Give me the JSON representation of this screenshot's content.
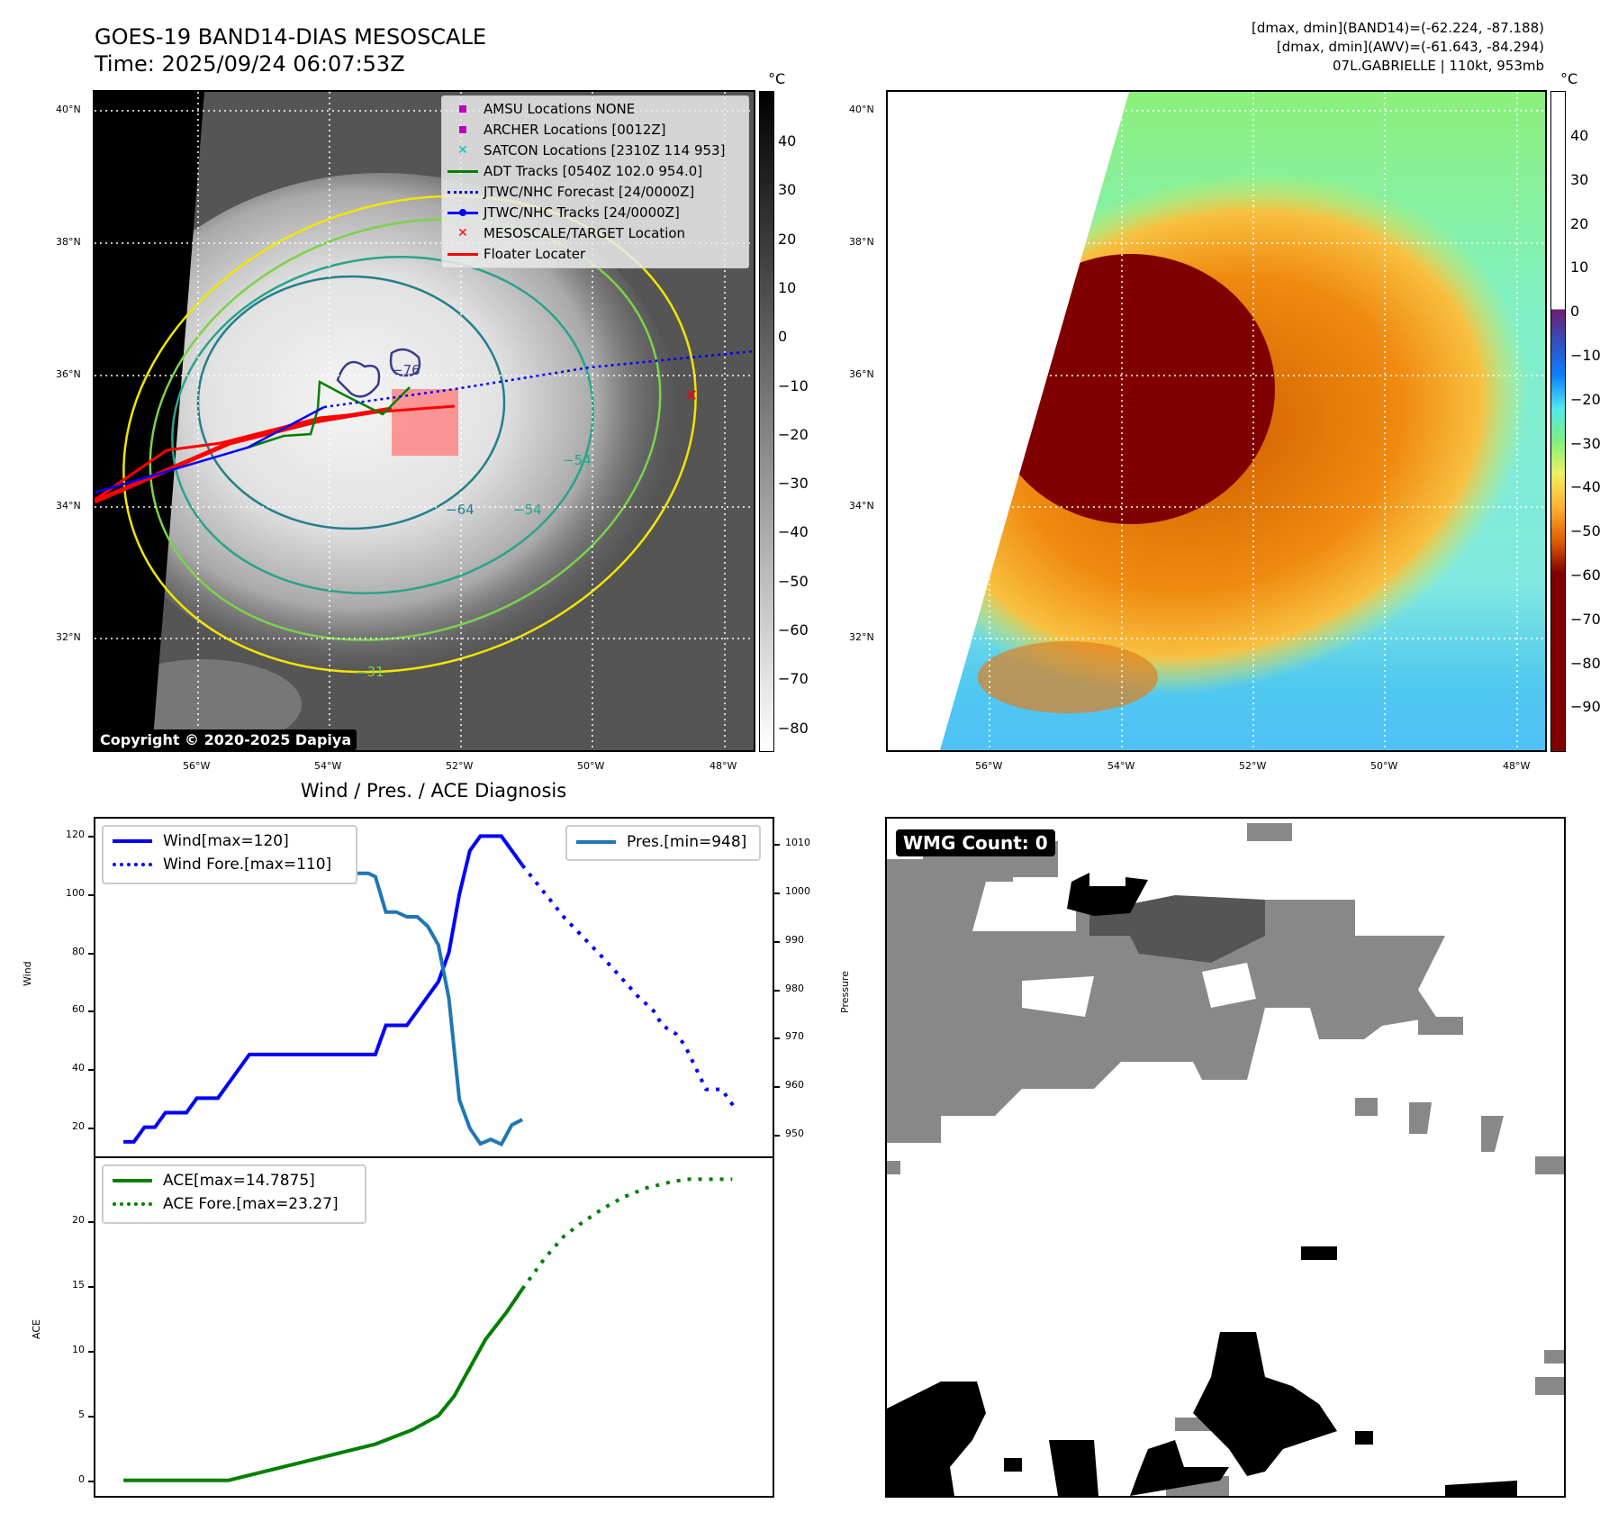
{
  "header": {
    "title_line1": "GOES-19 BAND14-DIAS MESOSCALE",
    "title_line2": "Time: 2025/09/24 06:07:53Z",
    "info_line1": "[dmax, dmin](BAND14)=(-62.224, -87.188)",
    "info_line2": "[dmax, dmin](AWV)=(-61.643, -84.294)",
    "info_line3": "07L.GABRIELLE | 110kt, 953mb"
  },
  "maps": {
    "lat_labels": [
      "40°N",
      "38°N",
      "36°N",
      "34°N",
      "32°N"
    ],
    "lon_labels": [
      "56°W",
      "54°W",
      "52°W",
      "50°W",
      "48°W"
    ],
    "unit": "°C",
    "left_colorbar_ticks": [
      "40",
      "30",
      "20",
      "10",
      "0",
      "−10",
      "−20",
      "−30",
      "−40",
      "−50",
      "−60",
      "−70",
      "−80"
    ],
    "right_colorbar_ticks": [
      "40",
      "30",
      "20",
      "10",
      "0",
      "−10",
      "−20",
      "−30",
      "−40",
      "−50",
      "−60",
      "−70",
      "−80",
      "−90"
    ],
    "contour_labels": [
      "−76",
      "−64",
      "−54",
      "−54",
      "−31"
    ],
    "copyright": "Copyright © 2020-2025 Dapiya",
    "legend": [
      {
        "label": "AMSU Locations NONE",
        "symbol": "square",
        "color": "#c000c0"
      },
      {
        "label": "ARCHER Locations [0012Z]",
        "symbol": "square",
        "color": "#c000c0"
      },
      {
        "label": "SATCON Locations [2310Z 114 953]",
        "symbol": "x",
        "color": "#00c0c0"
      },
      {
        "label": "ADT Tracks [0540Z 102.0 954.0]",
        "symbol": "line",
        "color": "#008000"
      },
      {
        "label": "JTWC/NHC Forecast [24/0000Z]",
        "symbol": "dotted",
        "color": "#0000ff"
      },
      {
        "label": "JTWC/NHC Tracks [24/0000Z]",
        "symbol": "line-dot",
        "color": "#0000ff"
      },
      {
        "label": "MESOSCALE/TARGET Location",
        "symbol": "x",
        "color": "#ff0000"
      },
      {
        "label": "Floater Locater",
        "symbol": "line",
        "color": "#ff0000"
      }
    ]
  },
  "wmg": {
    "label": "WMG Count: 0"
  },
  "chart_data": [
    {
      "type": "line",
      "title": "Wind / Pres. / ACE Diagnosis",
      "ylabel": "Wind",
      "y2label": "Pressure",
      "xlim": [
        -16,
        371
      ],
      "ylim": [
        10,
        126
      ],
      "y2lim": [
        945.5,
        1015.3
      ],
      "yticks": [
        20,
        40,
        60,
        80,
        100,
        120
      ],
      "y2ticks": [
        950,
        960,
        970,
        980,
        990,
        1000,
        1010
      ],
      "legend_left": [
        "Wind[max=120]",
        "Wind Fore.[max=110]"
      ],
      "legend_right": [
        "Pres.[min=948]"
      ],
      "series": [
        {
          "name": "Wind",
          "color": "#0000ff",
          "style": "solid",
          "axis": "left",
          "x": [
            0,
            6,
            12,
            18,
            24,
            36,
            42,
            54,
            72,
            144,
            150,
            162,
            180,
            186,
            192,
            198,
            204,
            216,
            228
          ],
          "y": [
            15,
            15,
            20,
            20,
            25,
            25,
            30,
            30,
            45,
            45,
            55,
            55,
            70,
            80,
            100,
            115,
            120,
            120,
            110
          ]
        },
        {
          "name": "Wind Fore.",
          "color": "#0000ff",
          "style": "dotted",
          "axis": "left",
          "x": [
            228,
            252,
            276,
            294,
            303,
            308,
            316,
            321,
            333,
            342,
            349
          ],
          "y": [
            110,
            92,
            77,
            65,
            60,
            55,
            52,
            48,
            33,
            33,
            27
          ]
        },
        {
          "name": "Pres.",
          "color": "#1f77b4",
          "style": "solid",
          "axis": "right",
          "x": [
            0,
            6,
            12,
            18,
            24,
            30,
            36,
            48,
            60,
            72,
            84,
            140,
            144,
            150,
            156,
            162,
            168,
            174,
            180,
            186,
            192,
            198,
            204,
            210,
            216,
            222,
            228
          ],
          "y": [
            1012.2,
            1012.2,
            1011.1,
            1011.1,
            1010.2,
            1010.2,
            1009.2,
            1007.2,
            1007.2,
            1005.2,
            1004,
            1004,
            1003.3,
            996,
            996,
            995,
            995,
            993,
            989.2,
            978.2,
            957.2,
            951.3,
            948.1,
            949,
            948,
            952,
            953.1
          ]
        }
      ]
    },
    {
      "type": "line",
      "ylabel": "ACE",
      "xlim": [
        -16,
        371
      ],
      "ylim": [
        -1.2,
        24.9
      ],
      "yticks": [
        0,
        5,
        10,
        15,
        20
      ],
      "legend": [
        "ACE[max=14.7875]",
        "ACE Fore.[max=23.27]"
      ],
      "series": [
        {
          "name": "ACE",
          "color": "#008000",
          "style": "solid",
          "x": [
            0,
            60,
            144,
            165,
            180,
            189,
            207,
            219,
            228
          ],
          "y": [
            0,
            0,
            2.8,
            3.9,
            5,
            6.5,
            10.9,
            13,
            14.79
          ]
        },
        {
          "name": "ACE Fore.",
          "color": "#008000",
          "style": "dotted",
          "x": [
            228,
            241,
            252,
            262,
            274,
            286,
            299,
            314,
            323,
            348
          ],
          "y": [
            14.79,
            17.2,
            18.9,
            19.9,
            21,
            21.9,
            22.6,
            23.1,
            23.27,
            23.27
          ]
        }
      ]
    }
  ]
}
